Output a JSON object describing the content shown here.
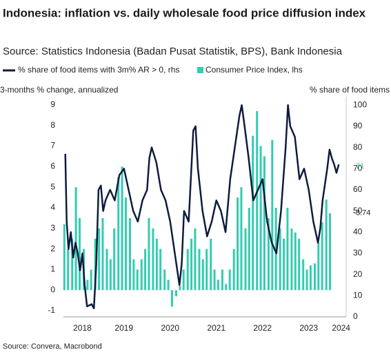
{
  "chart_data": {
    "type": "bar_line",
    "title": "Indonesia: inflation vs. daily wholesale food price diffusion index",
    "subtitle": "Source: Statistics Indonesia (Badan Pusat Statistik, BPS), Bank Indonesia",
    "y_label": "3-months % change, annualized",
    "y2_label": "% share of food items",
    "source": "Source: Convera, Macrobond",
    "xlim": [
      2018.19,
      2024.31
    ],
    "xticks": [
      {
        "value": 2018.6,
        "label": "2018"
      },
      {
        "value": 2019.5,
        "label": "2019"
      },
      {
        "value": 2020.5,
        "label": "2020"
      },
      {
        "value": 2021.5,
        "label": "2021"
      },
      {
        "value": 2022.5,
        "label": "2022"
      },
      {
        "value": 2023.5,
        "label": "2023"
      },
      {
        "value": 2024.2,
        "label": "2024"
      }
    ],
    "ylim": [
      -1.3,
      9.4
    ],
    "yticks": [
      -1,
      0,
      1,
      2,
      3,
      4,
      5,
      6,
      7,
      8,
      9
    ],
    "y2lim": [
      0,
      104
    ],
    "y2ticks": [
      0,
      10,
      20,
      30,
      40,
      50,
      60,
      70,
      80,
      90,
      100
    ],
    "series": [
      {
        "name": "% share of food items with 3m% AR > 0, rhs",
        "type": "line",
        "axis": "y2",
        "color": "#0d1b3e",
        "x": [
          2018.23,
          2018.26,
          2018.3,
          2018.35,
          2018.4,
          2018.45,
          2018.5,
          2018.55,
          2018.6,
          2018.65,
          2018.7,
          2018.8,
          2018.85,
          2018.9,
          2018.95,
          2019.0,
          2019.05,
          2019.1,
          2019.2,
          2019.3,
          2019.4,
          2019.5,
          2019.6,
          2019.7,
          2019.8,
          2019.9,
          2020.0,
          2020.05,
          2020.1,
          2020.2,
          2020.3,
          2020.4,
          2020.5,
          2020.6,
          2020.7,
          2020.75,
          2020.8,
          2020.9,
          2021.0,
          2021.05,
          2021.1,
          2021.2,
          2021.3,
          2021.4,
          2021.5,
          2021.6,
          2021.7,
          2021.8,
          2021.9,
          2022.0,
          2022.05,
          2022.1,
          2022.2,
          2022.3,
          2022.4,
          2022.5,
          2022.6,
          2022.7,
          2022.8,
          2022.9,
          2023.0,
          2023.05,
          2023.1,
          2023.2,
          2023.3,
          2023.4,
          2023.5,
          2023.6,
          2023.7,
          2023.75,
          2023.8,
          2023.9,
          2023.95,
          2024.0,
          2024.05,
          2024.1,
          2024.15
        ],
        "values": [
          77,
          45,
          32,
          40,
          28,
          35,
          30,
          22,
          30,
          15,
          5,
          6,
          4,
          25,
          60,
          62,
          50,
          55,
          60,
          55,
          67,
          70,
          60,
          50,
          45,
          55,
          60,
          75,
          80,
          73,
          60,
          55,
          45,
          30,
          15,
          25,
          50,
          45,
          88,
          90,
          70,
          50,
          38,
          45,
          55,
          50,
          40,
          65,
          80,
          95,
          100,
          92,
          75,
          55,
          60,
          65,
          45,
          35,
          30,
          50,
          80,
          100,
          90,
          85,
          65,
          70,
          60,
          45,
          35,
          42,
          55,
          70,
          79,
          75,
          72,
          68,
          72
        ]
      },
      {
        "name": "Consumer Price Index, lhs",
        "type": "bar",
        "axis": "y",
        "color": "#33ccb0",
        "x": [
          2018.21,
          2018.29,
          2018.38,
          2018.46,
          2018.54,
          2018.63,
          2018.71,
          2018.79,
          2018.88,
          2018.96,
          2019.04,
          2019.13,
          2019.21,
          2019.29,
          2019.38,
          2019.46,
          2019.54,
          2019.63,
          2019.71,
          2019.79,
          2019.88,
          2019.96,
          2020.04,
          2020.13,
          2020.21,
          2020.29,
          2020.38,
          2020.46,
          2020.54,
          2020.63,
          2020.71,
          2020.79,
          2020.88,
          2020.96,
          2021.04,
          2021.13,
          2021.21,
          2021.29,
          2021.38,
          2021.46,
          2021.54,
          2021.63,
          2021.71,
          2021.79,
          2021.88,
          2021.96,
          2022.04,
          2022.13,
          2022.21,
          2022.29,
          2022.38,
          2022.46,
          2022.54,
          2022.63,
          2022.71,
          2022.79,
          2022.88,
          2022.96,
          2023.04,
          2023.13,
          2023.21,
          2023.29,
          2023.38,
          2023.46,
          2023.54,
          2023.63,
          2023.71,
          2023.79,
          2023.88,
          2023.96
        ],
        "values": [
          3.2,
          2.0,
          2.5,
          5.0,
          3.5,
          2.0,
          0.5,
          1.0,
          2.5,
          3.0,
          3.5,
          2.0,
          1.5,
          3.0,
          5.5,
          6.0,
          4.5,
          3.5,
          1.5,
          1.0,
          1.5,
          2.0,
          3.5,
          3.0,
          2.5,
          2.0,
          1.0,
          0.5,
          -0.8,
          -0.3,
          0.2,
          1.0,
          2.0,
          2.5,
          3.0,
          2.0,
          1.5,
          2.0,
          2.5,
          1.0,
          0.5,
          1.0,
          0.3,
          1.0,
          2.0,
          4.5,
          5.0,
          3.0,
          4.0,
          7.5,
          8.7,
          7.0,
          6.5,
          3.5,
          7.3,
          4.0,
          3.0,
          2.5,
          4.0,
          3.0,
          2.8,
          2.5,
          1.5,
          1.0,
          1.2,
          1.3,
          2.3,
          3.3,
          4.4,
          3.74
        ]
      }
    ],
    "annotations": [
      {
        "value": 71,
        "axis": "y2",
        "color": "#33ccb0"
      },
      {
        "value": 3.74,
        "axis": "y",
        "color": "#222222"
      }
    ]
  }
}
